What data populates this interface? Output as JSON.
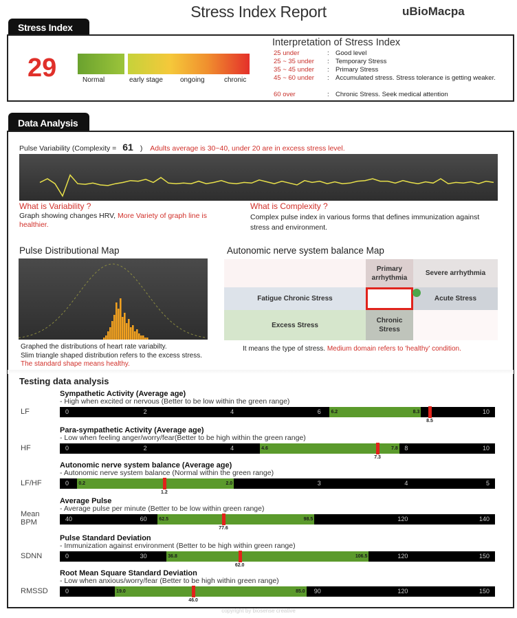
{
  "header": {
    "title": "Stress Index Report",
    "brand": "uBioMacpa"
  },
  "stress_index": {
    "tab": "Stress Index",
    "score": "29",
    "scale_labels": [
      "Normal",
      "early stage",
      "ongoing",
      "chronic"
    ],
    "interpretation_title": "Interpretation of Stress Index",
    "interpretation": [
      {
        "range": "25 under",
        "desc": "Good level"
      },
      {
        "range": "25 ~ 35 under",
        "desc": "Temporary Stress"
      },
      {
        "range": "35 ~ 45 under",
        "desc": "Primary Stress"
      },
      {
        "range": "45 ~ 60 under",
        "desc": "Accumulated stress. Stress tolerance is getting weaker."
      },
      {
        "range": "60 over",
        "desc": "Chronic Stress. Seek medical attention"
      }
    ],
    "colon": ":"
  },
  "data_analysis": {
    "tab": "Data Analysis",
    "pulse_prefix": "Pulse Variability (Complexity =",
    "complexity": "61",
    "pulse_suffix": ")",
    "pulse_note": "Adults average is 30~40, under 20 are in excess stress level.",
    "variability_q": "What is Variability ?",
    "variability_desc": "Graph showing changes HRV,",
    "variability_red": "More Variety of graph line is healthier.",
    "complexity_q": "What is Complexity ?",
    "complexity_desc": "Complex pulse index in various forms that defines immunization against stress and environment.",
    "dist_title": "Pulse Distributional Map",
    "dist_desc1": "Graphed the distributions of heart rate variabilty.",
    "dist_desc2": "Slim triangle shaped distribution refers to the excess stress.",
    "dist_desc3": "The standard shape means healthy.",
    "ans_title": "Autonomic nerve system balance Map",
    "ans_cells": {
      "primary": "Primary arrhythmia",
      "severe": "Severe arrhythmia",
      "fatigue": "Fatigue Chronic Stress",
      "acute": "Acute Stress",
      "excess": "Excess Stress",
      "chronic": "Chronic Stress"
    },
    "ans_desc": "It means the type of stress.",
    "ans_red": "Medium domain refers to 'healthy' condition.",
    "colors": {
      "wave": "#e8e04a",
      "hist": "#f0a020",
      "marker": "#e2231a",
      "green": "#5b9a2c"
    }
  },
  "chart_data": [
    {
      "type": "line",
      "values": [
        0.2,
        0.5,
        0.1,
        -0.9,
        0.8,
        0.1,
        0.05,
        0.15,
        0.0,
        -0.05,
        0.1,
        0.2,
        0.35,
        0.3,
        0.45,
        0.2,
        0.6,
        0.15,
        0.1,
        0.15,
        0.1,
        0.3,
        0.1,
        0.2,
        0.35,
        0.15,
        0.1,
        0.2,
        0.15,
        0.4,
        0.25,
        0.1,
        0.3,
        0.15,
        0.0,
        0.35,
        0.2,
        0.3,
        0.1,
        0.25,
        0.1,
        0.15,
        0.3,
        0.35,
        0.5,
        0.3,
        0.3,
        0.15,
        0.35,
        0.2,
        0.1,
        0.25,
        0.15,
        0.5,
        0.1,
        0.2,
        0.15,
        0.25,
        0.1,
        0.3,
        0.2
      ]
    },
    {
      "type": "bar",
      "values": [
        1,
        2,
        4,
        6,
        9,
        12,
        18,
        15,
        20,
        11,
        13,
        8,
        10,
        6,
        7,
        4,
        5,
        3,
        2,
        2,
        1,
        1
      ]
    }
  ],
  "testing": {
    "title": "Testing data analysis",
    "metrics": [
      {
        "label": "LF",
        "title": "Sympathetic Activity (Average age)",
        "desc": "- High when excited or nervous (Better to be low within the green range)",
        "min": 0,
        "max": 10,
        "ticks": [
          "0",
          "2",
          "4",
          "6",
          "10"
        ],
        "tick_values": [
          0,
          2,
          4,
          6,
          10
        ],
        "green": [
          6.2,
          8.3
        ],
        "green_labels": [
          "6.2",
          "8.3"
        ],
        "value": 8.5,
        "value_label": "8.5"
      },
      {
        "label": "HF",
        "title": "Para-sympathetic Activity (Average age)",
        "desc": "- Low when feeling anger/worry/fear(Better to be high within the green range)",
        "min": 0,
        "max": 10,
        "ticks": [
          "0",
          "2",
          "4",
          "8",
          "10"
        ],
        "tick_values": [
          0,
          2,
          4,
          8,
          10
        ],
        "green": [
          4.6,
          7.8
        ],
        "green_labels": [
          "4.6",
          "7.8"
        ],
        "value": 7.3,
        "value_label": "7.3"
      },
      {
        "label": "LF/HF",
        "title": "Autonomic nerve system balance (Average age)",
        "desc": "- Autonomic nerve system balance (Normal within the green range)",
        "min": 0,
        "max": 5,
        "ticks": [
          "0",
          "3",
          "4",
          "5"
        ],
        "tick_values": [
          0,
          3,
          4,
          5
        ],
        "green": [
          0.2,
          2.0
        ],
        "green_labels": [
          "0.2",
          "2.0"
        ],
        "value": 1.2,
        "value_label": "1.2"
      },
      {
        "label": "Mean BPM",
        "title": "Average Pulse",
        "desc": "- Average pulse per minute (Better to be low within green range)",
        "min": 40,
        "max": 140,
        "ticks": [
          "40",
          "60",
          "120",
          "140"
        ],
        "tick_values": [
          40,
          60,
          120,
          140
        ],
        "green": [
          62.5,
          98.5
        ],
        "green_labels": [
          "62.5",
          "98.5"
        ],
        "value": 77.6,
        "value_label": "77.6"
      },
      {
        "label": "SDNN",
        "title": "Pulse Standard Deviation",
        "desc": "- Immunization against environment (Better to be high within green range)",
        "min": 0,
        "max": 150,
        "ticks": [
          "0",
          "30",
          "120",
          "150"
        ],
        "tick_values": [
          0,
          30,
          120,
          150
        ],
        "green": [
          36.8,
          106.5
        ],
        "green_labels": [
          "36.8",
          "106.5"
        ],
        "value": 62.0,
        "value_label": "62.0"
      },
      {
        "label": "RMSSD",
        "title": "Root Mean Square Standard Deviation",
        "desc": "- Low when anxious/worry/fear (Better to be high within green range)",
        "min": 0,
        "max": 150,
        "ticks": [
          "0",
          "90",
          "120",
          "150"
        ],
        "tick_values": [
          0,
          90,
          120,
          150
        ],
        "green": [
          19.0,
          85.0
        ],
        "green_labels": [
          "19.0",
          "85.0"
        ],
        "value": 46.0,
        "value_label": "46.0"
      }
    ]
  },
  "footer": {
    "copyright": "copyright by biosense creative"
  }
}
